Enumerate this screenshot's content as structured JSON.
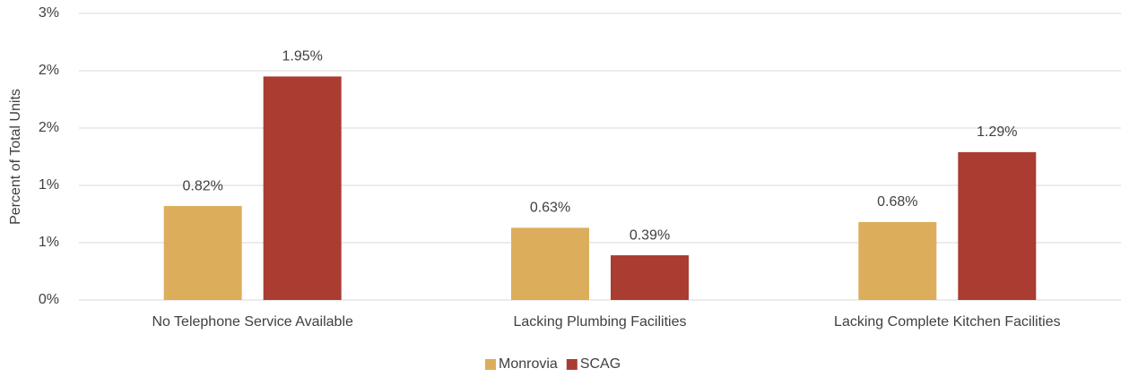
{
  "chart_data": {
    "type": "bar",
    "y_label": "Percent of Total Units",
    "categories": [
      "No Telephone Service Available",
      "Lacking Plumbing Facilities",
      "Lacking Complete Kitchen Facilities"
    ],
    "series": [
      {
        "name": "Monrovia",
        "color": "#dcae5b",
        "values": [
          0.82,
          0.63,
          0.68
        ],
        "value_labels": [
          "0.82%",
          "0.63%",
          "0.68%"
        ]
      },
      {
        "name": "SCAG",
        "color": "#aa3c32",
        "values": [
          1.95,
          0.39,
          1.29
        ],
        "value_labels": [
          "1.95%",
          "0.39%",
          "1.29%"
        ]
      }
    ],
    "ylim": [
      0,
      2.5
    ],
    "yticks": [
      {
        "value": 0,
        "label": "0%"
      },
      {
        "value": 0.5,
        "label": "1%"
      },
      {
        "value": 1,
        "label": "1%"
      },
      {
        "value": 1.5,
        "label": "2%"
      },
      {
        "value": 2,
        "label": "2%"
      },
      {
        "value": 2.5,
        "label": "3%"
      }
    ],
    "grid": true,
    "legend": "bottom"
  }
}
